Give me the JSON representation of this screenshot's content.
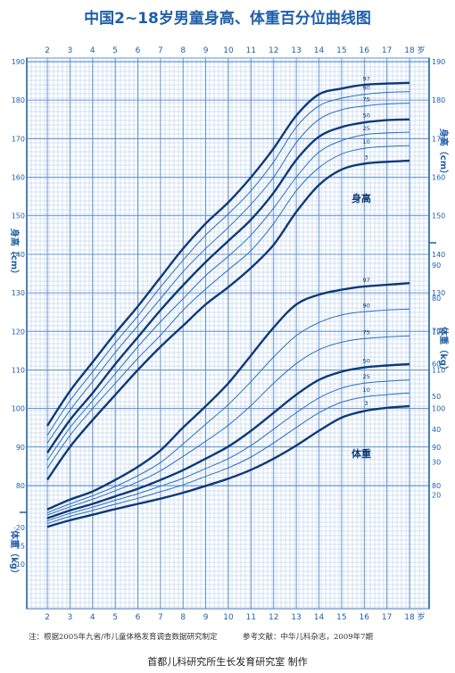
{
  "title": "中国2~18岁男童身高、体重百分位曲线图",
  "chart_data": {
    "type": "line",
    "title": "中国2~18岁男童身高、体重百分位曲线图",
    "x_ticks": [
      "2",
      "3",
      "4",
      "5",
      "6",
      "7",
      "8",
      "9",
      "10",
      "11",
      "12",
      "13",
      "14",
      "15",
      "16",
      "17",
      "18"
    ],
    "x_unit": "岁",
    "x_range": [
      2,
      18
    ],
    "height_axis": {
      "label": "身高（cm）",
      "range": [
        80,
        190
      ],
      "ticks": [
        80,
        90,
        100,
        110,
        120,
        130,
        140,
        150,
        160,
        170,
        180,
        190
      ]
    },
    "weight_axis_left": {
      "label": "体重（kg）",
      "range": [
        5,
        25
      ],
      "ticks": [
        10,
        15,
        20
      ]
    },
    "weight_axis_right": {
      "label": "体重（kg）",
      "range": [
        10,
        95
      ],
      "ticks": [
        20,
        30,
        40,
        50,
        60,
        70,
        80,
        90
      ]
    },
    "height_label": "身高",
    "weight_label": "体重",
    "ages": [
      2,
      3,
      4,
      5,
      6,
      7,
      8,
      9,
      10,
      11,
      12,
      13,
      14,
      15,
      16,
      17,
      18
    ],
    "height_series": [
      {
        "name": "97",
        "values": [
          95.5,
          104.5,
          112,
          119.5,
          126.5,
          134,
          141.5,
          148,
          153.5,
          160,
          167.5,
          176,
          181.5,
          183,
          184,
          184.3,
          184.5
        ]
      },
      {
        "name": "90",
        "values": [
          93,
          102,
          109.5,
          117,
          124,
          131.5,
          138.5,
          145,
          150.5,
          156.5,
          164,
          173,
          178.5,
          180.5,
          181.5,
          182,
          182.2
        ]
      },
      {
        "name": "75",
        "values": [
          91,
          99.5,
          107,
          114.5,
          121.5,
          128.5,
          135.5,
          141.5,
          147,
          153,
          160,
          169,
          175,
          177.5,
          178.5,
          179,
          179.2
        ]
      },
      {
        "name": "50",
        "values": [
          88.5,
          97,
          104,
          111.5,
          118.5,
          125.5,
          132,
          138,
          143.5,
          149,
          156,
          164.5,
          170.5,
          173,
          174.2,
          174.8,
          175
        ]
      },
      {
        "name": "25",
        "values": [
          86.5,
          95,
          102,
          109,
          116,
          122.5,
          128.5,
          134.5,
          139.5,
          145,
          152,
          160,
          166.5,
          169.5,
          171,
          171.5,
          171.7
        ]
      },
      {
        "name": "10",
        "values": [
          84.5,
          93,
          100,
          106.5,
          113,
          119,
          125.5,
          131,
          136,
          141,
          148,
          156.5,
          162.5,
          166,
          167.5,
          168,
          168.2
        ]
      },
      {
        "name": "3",
        "values": [
          81.5,
          90,
          97,
          103.5,
          110,
          116,
          121.5,
          127,
          131.5,
          136.5,
          142.5,
          151,
          158,
          162,
          163.5,
          164,
          164.3
        ]
      }
    ],
    "weight_series": [
      {
        "name": "97",
        "values": [
          15.5,
          18.5,
          21,
          24.5,
          28.5,
          33.5,
          40.5,
          47,
          54,
          62.5,
          71,
          78,
          81,
          82.5,
          83.5,
          84,
          84.5
        ]
      },
      {
        "name": "90",
        "values": [
          14.5,
          17.2,
          19.7,
          22.5,
          25.8,
          29.8,
          35.5,
          41.5,
          47.5,
          54.5,
          62,
          68.5,
          72.5,
          74.8,
          75.8,
          76.3,
          76.6
        ]
      },
      {
        "name": "75",
        "values": [
          13.8,
          16.3,
          18.6,
          21.2,
          23.9,
          27.3,
          31.7,
          36.3,
          41.2,
          47.2,
          54,
          60,
          64.2,
          66.5,
          67.6,
          68.1,
          68.4
        ]
      },
      {
        "name": "50",
        "values": [
          12.8,
          15.2,
          17.2,
          19.5,
          21.8,
          24.5,
          27.5,
          31,
          34.7,
          39.5,
          45,
          50.5,
          55,
          57.5,
          58.8,
          59.4,
          59.8
        ]
      },
      {
        "name": "25",
        "values": [
          12,
          14.3,
          16.2,
          18.3,
          20.3,
          22.6,
          25,
          28,
          31,
          35,
          40,
          45,
          49.5,
          52.5,
          54,
          54.6,
          55
        ]
      },
      {
        "name": "10",
        "values": [
          11.2,
          13.4,
          15.2,
          17.1,
          18.9,
          20.9,
          23,
          25.6,
          28.2,
          31.5,
          35.8,
          40.5,
          45,
          48.2,
          49.8,
          50.5,
          51
        ]
      },
      {
        "name": "3",
        "values": [
          10.2,
          12.2,
          13.9,
          15.6,
          17.2,
          18.8,
          20.6,
          22.7,
          24.9,
          27.6,
          31,
          35,
          39.5,
          43.5,
          45.5,
          46.5,
          47
        ]
      }
    ]
  },
  "footnote_left": "注：根据2005年九省/市儿童体格发育调查数据研究制定",
  "footnote_right": "参考文献：中华儿科杂志，2009年7期",
  "credit": "首都儿科研究所生长发育研究室 制作",
  "colors": {
    "title": "#1f5fa8",
    "grid_major": "#5b8cc7",
    "grid_minor": "#a9c6e8",
    "curve": "#0d3a78",
    "band": "#cfe2f6"
  }
}
